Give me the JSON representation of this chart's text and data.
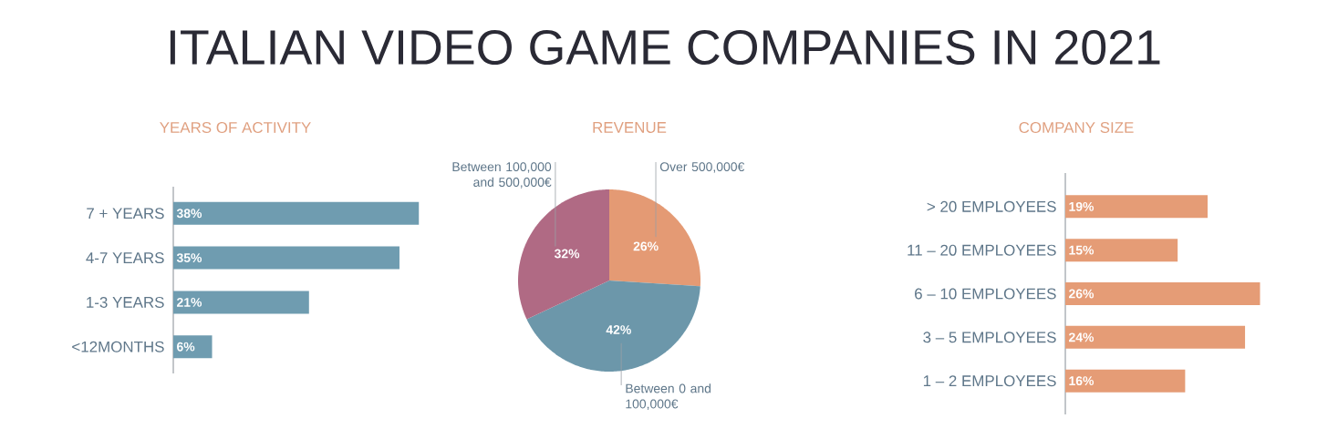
{
  "chart_data": [
    {
      "type": "bar",
      "orientation": "horizontal",
      "title": "ITALIAN VIDEO GAME COMPANIES IN 2021",
      "subtitle": "YEARS OF ACTIVITY",
      "categories": [
        "7 + YEARS",
        "4-7 YEARS",
        "1-3 YEARS",
        "<12MONTHS"
      ],
      "values": [
        38,
        35,
        21,
        6
      ],
      "value_labels": [
        "38%",
        "35%",
        "21%",
        "6%"
      ],
      "color": "#6f9cb0"
    },
    {
      "type": "pie",
      "title": "REVENUE",
      "categories": [
        "Over 500,000€",
        "Between 0 and 100,000€",
        "Between 100,000 and 500,000€"
      ],
      "values": [
        26,
        42,
        32
      ],
      "value_labels": [
        "26%",
        "42%",
        "32%"
      ],
      "colors": [
        "#e49a74",
        "#6c97aa",
        "#b06a84"
      ]
    },
    {
      "type": "bar",
      "orientation": "horizontal",
      "title": "COMPANY SIZE",
      "categories": [
        "> 20 EMPLOYEES",
        "11 – 20 EMPLOYEES",
        "6 – 10 EMPLOYEES",
        "3 – 5 EMPLOYEES",
        "1 – 2 EMPLOYEES"
      ],
      "values": [
        19,
        15,
        26,
        24,
        16
      ],
      "value_labels": [
        "19%",
        "15%",
        "26%",
        "24%",
        "16%"
      ],
      "color": "#e59c76"
    }
  ]
}
